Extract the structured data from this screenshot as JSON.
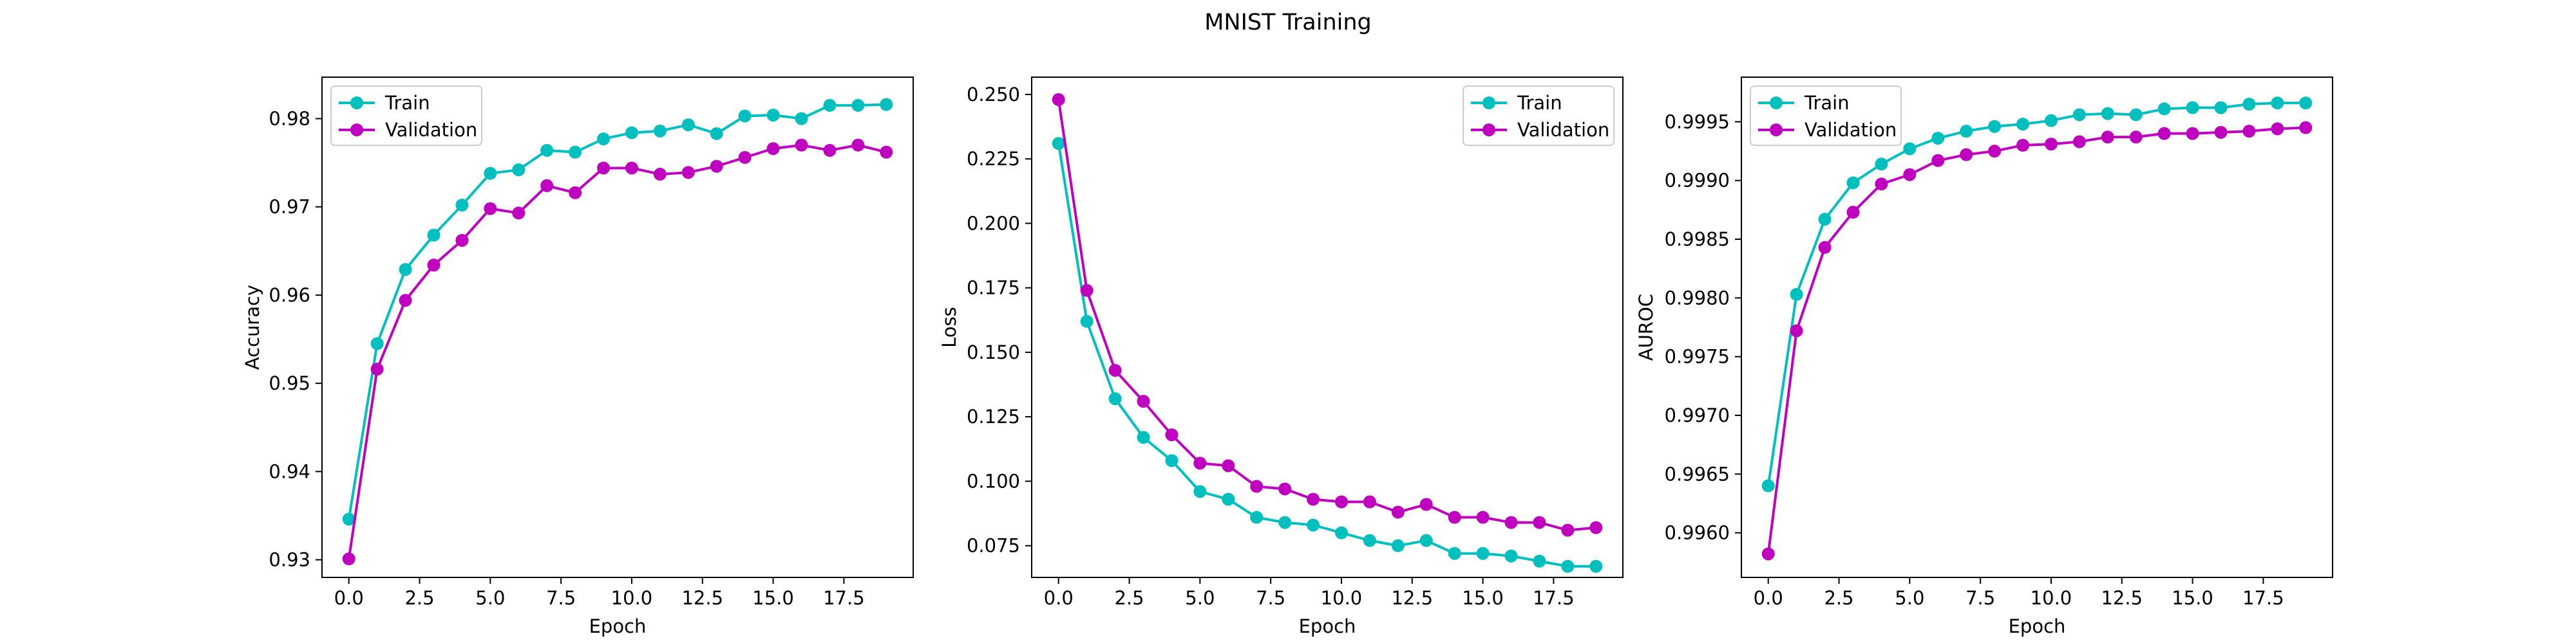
{
  "figure": {
    "title": "MNIST Training"
  },
  "colors": {
    "train": "#00bfbf",
    "validation": "#bf00bf",
    "axes": "#000000",
    "background": "#ffffff"
  },
  "chart_data": [
    {
      "type": "line",
      "title": "",
      "xlabel": "Epoch",
      "ylabel": "Accuracy",
      "xlim": [
        -0.95,
        19.95
      ],
      "ylim": [
        0.928,
        0.9847
      ],
      "xticks": [
        0,
        2.5,
        5,
        7.5,
        10,
        12.5,
        15,
        17.5
      ],
      "xtick_labels": [
        "0.0",
        "2.5",
        "5.0",
        "7.5",
        "10.0",
        "12.5",
        "15.0",
        "17.5"
      ],
      "yticks": [
        0.93,
        0.94,
        0.95,
        0.96,
        0.97,
        0.98
      ],
      "ytick_labels": [
        "0.93",
        "0.94",
        "0.95",
        "0.96",
        "0.97",
        "0.98"
      ],
      "grid": false,
      "legend_position": "upper-left",
      "x": [
        0,
        1,
        2,
        3,
        4,
        5,
        6,
        7,
        8,
        9,
        10,
        11,
        12,
        13,
        14,
        15,
        16,
        17,
        18,
        19
      ],
      "series": [
        {
          "name": "Train",
          "values": [
            0.9346,
            0.9545,
            0.9629,
            0.9668,
            0.9702,
            0.9738,
            0.9742,
            0.9764,
            0.9762,
            0.9777,
            0.9784,
            0.9786,
            0.9793,
            0.9783,
            0.9803,
            0.9804,
            0.98,
            0.9815,
            0.9815,
            0.9816
          ]
        },
        {
          "name": "Validation",
          "values": [
            0.9301,
            0.9516,
            0.9594,
            0.9634,
            0.9662,
            0.9698,
            0.9693,
            0.9724,
            0.9716,
            0.9744,
            0.9744,
            0.9737,
            0.9739,
            0.9746,
            0.9756,
            0.9766,
            0.977,
            0.9764,
            0.977,
            0.9762
          ]
        }
      ]
    },
    {
      "type": "line",
      "title": "",
      "xlabel": "Epoch",
      "ylabel": "Loss",
      "xlim": [
        -0.95,
        19.95
      ],
      "ylim": [
        0.0627,
        0.2567
      ],
      "xticks": [
        0,
        2.5,
        5,
        7.5,
        10,
        12.5,
        15,
        17.5
      ],
      "xtick_labels": [
        "0.0",
        "2.5",
        "5.0",
        "7.5",
        "10.0",
        "12.5",
        "15.0",
        "17.5"
      ],
      "yticks": [
        0.075,
        0.1,
        0.125,
        0.15,
        0.175,
        0.2,
        0.225,
        0.25
      ],
      "ytick_labels": [
        "0.075",
        "0.100",
        "0.125",
        "0.150",
        "0.175",
        "0.200",
        "0.225",
        "0.250"
      ],
      "grid": false,
      "legend_position": "upper-right",
      "x": [
        0,
        1,
        2,
        3,
        4,
        5,
        6,
        7,
        8,
        9,
        10,
        11,
        12,
        13,
        14,
        15,
        16,
        17,
        18,
        19
      ],
      "series": [
        {
          "name": "Train",
          "values": [
            0.231,
            0.162,
            0.132,
            0.117,
            0.108,
            0.096,
            0.093,
            0.086,
            0.084,
            0.083,
            0.08,
            0.077,
            0.075,
            0.077,
            0.072,
            0.072,
            0.071,
            0.069,
            0.067,
            0.067
          ]
        },
        {
          "name": "Validation",
          "values": [
            0.248,
            0.174,
            0.143,
            0.131,
            0.118,
            0.107,
            0.106,
            0.098,
            0.097,
            0.093,
            0.092,
            0.092,
            0.088,
            0.091,
            0.086,
            0.086,
            0.084,
            0.084,
            0.081,
            0.082
          ]
        }
      ]
    },
    {
      "type": "line",
      "title": "",
      "xlabel": "Epoch",
      "ylabel": "AUROC",
      "xlim": [
        -0.95,
        19.95
      ],
      "ylim": [
        0.99562,
        0.99988
      ],
      "xticks": [
        0,
        2.5,
        5,
        7.5,
        10,
        12.5,
        15,
        17.5
      ],
      "xtick_labels": [
        "0.0",
        "2.5",
        "5.0",
        "7.5",
        "10.0",
        "12.5",
        "15.0",
        "17.5"
      ],
      "yticks": [
        0.996,
        0.9965,
        0.997,
        0.9975,
        0.998,
        0.9985,
        0.999,
        0.9995
      ],
      "ytick_labels": [
        "0.9960",
        "0.9965",
        "0.9970",
        "0.9975",
        "0.9980",
        "0.9985",
        "0.9990",
        "0.9995"
      ],
      "grid": false,
      "legend_position": "upper-left",
      "x": [
        0,
        1,
        2,
        3,
        4,
        5,
        6,
        7,
        8,
        9,
        10,
        11,
        12,
        13,
        14,
        15,
        16,
        17,
        18,
        19
      ],
      "series": [
        {
          "name": "Train",
          "values": [
            0.9964,
            0.99803,
            0.99867,
            0.99898,
            0.99914,
            0.99927,
            0.99936,
            0.99942,
            0.99946,
            0.99948,
            0.99951,
            0.99956,
            0.99957,
            0.99956,
            0.99961,
            0.99962,
            0.99962,
            0.99965,
            0.99966,
            0.99966
          ]
        },
        {
          "name": "Validation",
          "values": [
            0.99582,
            0.99772,
            0.99843,
            0.99873,
            0.99897,
            0.99905,
            0.99917,
            0.99922,
            0.99925,
            0.9993,
            0.99931,
            0.99933,
            0.99937,
            0.99937,
            0.9994,
            0.9994,
            0.99941,
            0.99942,
            0.99944,
            0.99945
          ]
        }
      ]
    }
  ]
}
